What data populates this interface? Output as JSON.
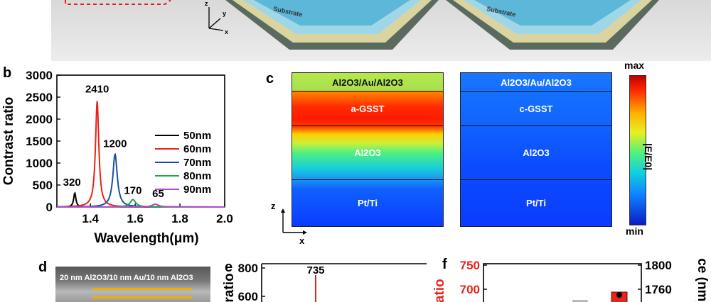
{
  "panel_labels": {
    "b": "b",
    "c": "c",
    "d": "d",
    "e": "e",
    "f": "f"
  },
  "panel_a": {
    "substrate_label": "Substrate",
    "axis_z": "z",
    "axis_y": "y",
    "axis_x": "x"
  },
  "panel_c": {
    "left_layers": [
      "Al2O3/Au/Al2O3",
      "a-GSST",
      "Al2O3",
      "Pt/Ti"
    ],
    "right_layers": [
      "Al2O3/Au/Al2O3",
      "c-GSST",
      "Al2O3",
      "Pt/Ti"
    ],
    "colorbar_max": "max",
    "colorbar_min": "min",
    "colorbar_label": "|E/E0|",
    "axis_z": "z",
    "axis_x": "x",
    "colors": {
      "hot": "#ff1a00",
      "mid": "#40ff60",
      "cold": "#0a3cff"
    }
  },
  "panel_d": {
    "caption": "20 nm Al2O3/10 nm Au/10 nm Al2O3"
  },
  "chart_data": [
    {
      "type": "line",
      "panel": "b",
      "xlabel": "Wavelength(μm)",
      "ylabel": "Contrast ratio",
      "xlim": [
        1.25,
        2.0
      ],
      "ylim": [
        0,
        3000
      ],
      "xticks": [
        "1.4",
        "1.6",
        "1.8",
        "2.0"
      ],
      "yticks": [
        "0",
        "500",
        "1000",
        "1500",
        "2000",
        "2500",
        "3000"
      ],
      "legend_position": "right",
      "series": [
        {
          "name": "50nm",
          "color": "#000000",
          "peak_x": 1.33,
          "peak_y": 320,
          "label": "320"
        },
        {
          "name": "60nm",
          "color": "#e8231a",
          "peak_x": 1.43,
          "peak_y": 2410,
          "label": "2410"
        },
        {
          "name": "70nm",
          "color": "#1a4fa8",
          "peak_x": 1.51,
          "peak_y": 1200,
          "label": "1200"
        },
        {
          "name": "80nm",
          "color": "#1aa84f",
          "peak_x": 1.59,
          "peak_y": 170,
          "label": "170"
        },
        {
          "name": "90nm",
          "color": "#b04fc8",
          "peak_x": 1.69,
          "peak_y": 65,
          "label": "65"
        }
      ]
    },
    {
      "type": "line",
      "panel": "e",
      "ylabel": "ratio",
      "yticks": [
        "600",
        "800"
      ],
      "series": [
        {
          "peak_label": "735",
          "color": "#e8231a"
        }
      ]
    },
    {
      "type": "bar",
      "panel": "f",
      "ylabel_left": "ratio",
      "ylabel_right": "ce (nm)",
      "yticks_left": [
        "700",
        "750"
      ],
      "yticks_right": [
        "1760",
        "1800"
      ],
      "left_color": "#e8231a"
    }
  ]
}
